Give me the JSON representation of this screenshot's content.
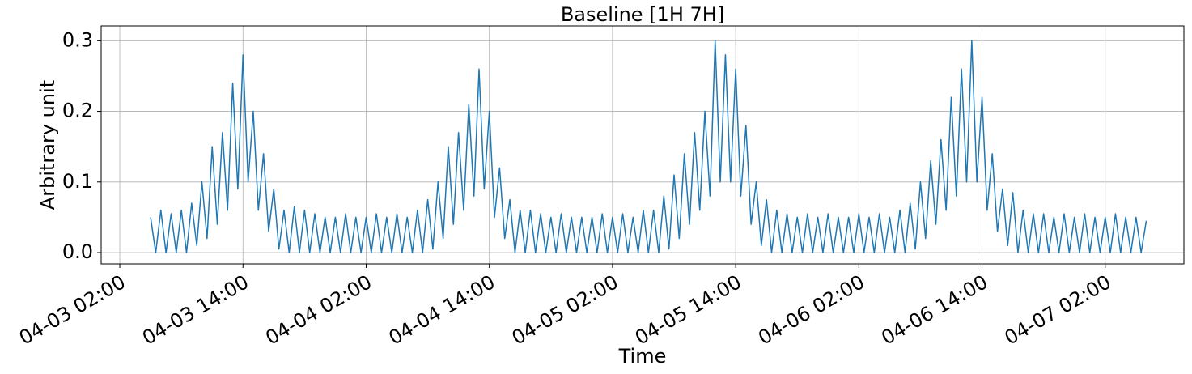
{
  "chart_data": {
    "type": "line",
    "title": "Baseline [1H 7H]",
    "x_label": "Time",
    "y_label": "Arbitrary unit",
    "color": "#1f77b4",
    "grid": true,
    "xlim": [
      "04-03 00:11",
      "04-07 09:40"
    ],
    "xticks": [
      "04-03 02:00",
      "04-03 14:00",
      "04-04 02:00",
      "04-04 14:00",
      "04-05 02:00",
      "04-05 14:00",
      "04-06 02:00",
      "04-06 14:00",
      "04-07 02:00"
    ],
    "ylim": [
      -0.016,
      0.321
    ],
    "yticks": [
      {
        "value": 0,
        "label": "0.0"
      },
      0.1,
      0.2,
      0.3
    ],
    "x": [
      "04-03 05:00",
      "04-03 05:30",
      "04-03 06:00",
      "04-03 06:30",
      "04-03 07:00",
      "04-03 07:30",
      "04-03 08:00",
      "04-03 08:30",
      "04-03 09:00",
      "04-03 09:30",
      "04-03 10:00",
      "04-03 10:30",
      "04-03 11:00",
      "04-03 11:30",
      "04-03 12:00",
      "04-03 12:30",
      "04-03 13:00",
      "04-03 13:30",
      "04-03 14:00",
      "04-03 14:30",
      "04-03 15:00",
      "04-03 15:30",
      "04-03 16:00",
      "04-03 16:30",
      "04-03 17:00",
      "04-03 17:30",
      "04-03 18:00",
      "04-03 18:30",
      "04-03 19:00",
      "04-03 19:30",
      "04-03 20:00",
      "04-03 20:30",
      "04-03 21:00",
      "04-03 21:30",
      "04-03 22:00",
      "04-03 22:30",
      "04-03 23:00",
      "04-03 23:30",
      "04-04 00:00",
      "04-04 00:30",
      "04-04 01:00",
      "04-04 01:30",
      "04-04 02:00",
      "04-04 02:30",
      "04-04 03:00",
      "04-04 03:30",
      "04-04 04:00",
      "04-04 04:30",
      "04-04 05:00",
      "04-04 05:30",
      "04-04 06:00",
      "04-04 06:30",
      "04-04 07:00",
      "04-04 07:30",
      "04-04 08:00",
      "04-04 08:30",
      "04-04 09:00",
      "04-04 09:30",
      "04-04 10:00",
      "04-04 10:30",
      "04-04 11:00",
      "04-04 11:30",
      "04-04 12:00",
      "04-04 12:30",
      "04-04 13:00",
      "04-04 13:30",
      "04-04 14:00",
      "04-04 14:30",
      "04-04 15:00",
      "04-04 15:30",
      "04-04 16:00",
      "04-04 16:30",
      "04-04 17:00",
      "04-04 17:30",
      "04-04 18:00",
      "04-04 18:30",
      "04-04 19:00",
      "04-04 19:30",
      "04-04 20:00",
      "04-04 20:30",
      "04-04 21:00",
      "04-04 21:30",
      "04-04 22:00",
      "04-04 22:30",
      "04-04 23:00",
      "04-04 23:30",
      "04-05 00:00",
      "04-05 00:30",
      "04-05 01:00",
      "04-05 01:30",
      "04-05 02:00",
      "04-05 02:30",
      "04-05 03:00",
      "04-05 03:30",
      "04-05 04:00",
      "04-05 04:30",
      "04-05 05:00",
      "04-05 05:30",
      "04-05 06:00",
      "04-05 06:30",
      "04-05 07:00",
      "04-05 07:30",
      "04-05 08:00",
      "04-05 08:30",
      "04-05 09:00",
      "04-05 09:30",
      "04-05 10:00",
      "04-05 10:30",
      "04-05 11:00",
      "04-05 11:30",
      "04-05 12:00",
      "04-05 12:30",
      "04-05 13:00",
      "04-05 13:30",
      "04-05 14:00",
      "04-05 14:30",
      "04-05 15:00",
      "04-05 15:30",
      "04-05 16:00",
      "04-05 16:30",
      "04-05 17:00",
      "04-05 17:30",
      "04-05 18:00",
      "04-05 18:30",
      "04-05 19:00",
      "04-05 19:30",
      "04-05 20:00",
      "04-05 20:30",
      "04-05 21:00",
      "04-05 21:30",
      "04-05 22:00",
      "04-05 22:30",
      "04-05 23:00",
      "04-05 23:30",
      "04-06 00:00",
      "04-06 00:30",
      "04-06 01:00",
      "04-06 01:30",
      "04-06 02:00",
      "04-06 02:30",
      "04-06 03:00",
      "04-06 03:30",
      "04-06 04:00",
      "04-06 04:30",
      "04-06 05:00",
      "04-06 05:30",
      "04-06 06:00",
      "04-06 06:30",
      "04-06 07:00",
      "04-06 07:30",
      "04-06 08:00",
      "04-06 08:30",
      "04-06 09:00",
      "04-06 09:30",
      "04-06 10:00",
      "04-06 10:30",
      "04-06 11:00",
      "04-06 11:30",
      "04-06 12:00",
      "04-06 12:30",
      "04-06 13:00",
      "04-06 13:30",
      "04-06 14:00",
      "04-06 14:30",
      "04-06 15:00",
      "04-06 15:30",
      "04-06 16:00",
      "04-06 16:30",
      "04-06 17:00",
      "04-06 17:30",
      "04-06 18:00",
      "04-06 18:30",
      "04-06 19:00",
      "04-06 19:30",
      "04-06 20:00",
      "04-06 20:30",
      "04-06 21:00",
      "04-06 21:30",
      "04-06 22:00",
      "04-06 22:30",
      "04-06 23:00",
      "04-06 23:30",
      "04-07 00:00",
      "04-07 00:30",
      "04-07 01:00",
      "04-07 01:30",
      "04-07 02:00",
      "04-07 02:30",
      "04-07 03:00",
      "04-07 03:30",
      "04-07 04:00",
      "04-07 04:30",
      "04-07 05:00",
      "04-07 05:30",
      "04-07 06:00"
    ],
    "values": [
      0.05,
      0,
      0.06,
      0,
      0.055,
      0,
      0.06,
      0,
      0.07,
      0.01,
      0.1,
      0.02,
      0.15,
      0.04,
      0.17,
      0.06,
      0.24,
      0.09,
      0.28,
      0.1,
      0.2,
      0.06,
      0.14,
      0.03,
      0.09,
      0.005,
      0.06,
      0,
      0.065,
      0,
      0.06,
      0,
      0.055,
      0,
      0.05,
      0,
      0.05,
      0,
      0.055,
      0,
      0.05,
      0,
      0.05,
      0,
      0.055,
      0,
      0.05,
      0,
      0.055,
      0,
      0.05,
      0,
      0.06,
      0,
      0.075,
      0.005,
      0.1,
      0.02,
      0.15,
      0.04,
      0.17,
      0.06,
      0.21,
      0.08,
      0.26,
      0.09,
      0.2,
      0.05,
      0.12,
      0.02,
      0.075,
      0,
      0.06,
      0,
      0.06,
      0,
      0.055,
      0,
      0.05,
      0,
      0.055,
      0,
      0.05,
      0,
      0.05,
      0,
      0.05,
      0,
      0.055,
      0,
      0.05,
      0,
      0.055,
      0,
      0.05,
      0,
      0.06,
      0,
      0.06,
      0,
      0.08,
      0.005,
      0.11,
      0.02,
      0.14,
      0.04,
      0.17,
      0.06,
      0.2,
      0.08,
      0.3,
      0.1,
      0.28,
      0.1,
      0.26,
      0.08,
      0.18,
      0.04,
      0.1,
      0.01,
      0.075,
      0,
      0.06,
      0,
      0.055,
      0,
      0.05,
      0,
      0.055,
      0,
      0.05,
      0,
      0.055,
      0,
      0.05,
      0,
      0.05,
      0,
      0.055,
      0,
      0.05,
      0,
      0.055,
      0,
      0.05,
      0,
      0.06,
      0,
      0.07,
      0.005,
      0.1,
      0.02,
      0.13,
      0.04,
      0.16,
      0.06,
      0.22,
      0.08,
      0.26,
      0.1,
      0.3,
      0.1,
      0.22,
      0.06,
      0.14,
      0.03,
      0.09,
      0.01,
      0.085,
      0,
      0.06,
      0,
      0.055,
      0,
      0.055,
      0,
      0.05,
      0,
      0.055,
      0,
      0.05,
      0,
      0.055,
      0,
      0.05,
      0,
      0.05,
      0,
      0.055,
      0,
      0.05,
      0,
      0.05,
      0,
      0.045
    ]
  }
}
